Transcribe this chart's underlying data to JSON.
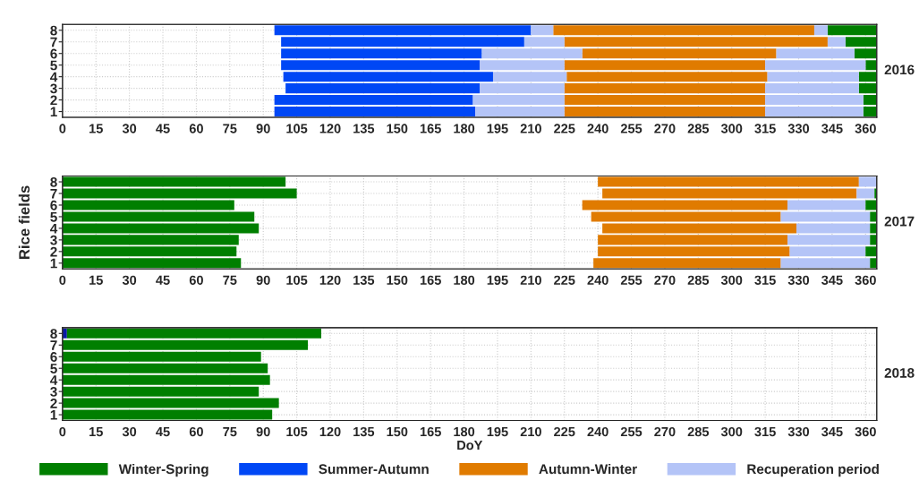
{
  "chart_data": [
    {
      "type": "bar",
      "orientation": "horizontal",
      "y2label": "2016",
      "categories": [
        "8",
        "7",
        "6",
        "5",
        "4",
        "3",
        "2",
        "1"
      ],
      "xlim": [
        0,
        365
      ],
      "xticks": [
        0,
        15,
        30,
        45,
        60,
        75,
        90,
        105,
        120,
        135,
        150,
        165,
        180,
        195,
        210,
        225,
        240,
        255,
        270,
        285,
        300,
        315,
        330,
        345,
        360
      ],
      "grid": true,
      "legend": "bottom",
      "series": [
        {
          "name": "Winter-Spring",
          "color": "#007f00",
          "base": [
            343,
            351,
            355,
            360,
            357,
            357,
            359,
            359
          ],
          "values": [
            22,
            14,
            10,
            5,
            8,
            8,
            6,
            6
          ]
        },
        {
          "name": "Summer-Autumn",
          "color": "#0047f5",
          "base": [
            95,
            98,
            98,
            98,
            99,
            100,
            95,
            95
          ],
          "values": [
            115,
            109,
            90,
            89,
            94,
            87,
            89,
            90
          ]
        },
        {
          "name": "Autumn-Winter",
          "color": "#e07b00",
          "base": [
            220,
            225,
            233,
            225,
            226,
            225,
            225,
            225
          ],
          "values": [
            117,
            118,
            87,
            90,
            90,
            90,
            90,
            90
          ]
        },
        {
          "name": "Recuperation period",
          "color": "#b4c4f7",
          "base": [
            210,
            207,
            188,
            187,
            193,
            187,
            184,
            185
          ],
          "values": [
            10,
            18,
            45,
            38,
            33,
            38,
            41,
            40
          ]
        },
        {
          "color": "#b4c4f7",
          "base": [
            337,
            343,
            320,
            315,
            316,
            315,
            315,
            315
          ],
          "values": [
            6,
            8,
            35,
            45,
            41,
            42,
            44,
            44
          ]
        }
      ]
    },
    {
      "type": "bar",
      "orientation": "horizontal",
      "y2label": "2017",
      "ylabel": "Rice fields",
      "categories": [
        "8",
        "7",
        "6",
        "5",
        "4",
        "3",
        "2",
        "1"
      ],
      "xlim": [
        0,
        365
      ],
      "xticks": [
        0,
        15,
        30,
        45,
        60,
        75,
        90,
        105,
        120,
        135,
        150,
        165,
        180,
        195,
        210,
        225,
        240,
        255,
        270,
        285,
        300,
        315,
        330,
        345,
        360
      ],
      "grid": true,
      "series": [
        {
          "color": "#007f00",
          "base": [
            0,
            0,
            0,
            0,
            0,
            0,
            0,
            0
          ],
          "values": [
            100,
            105,
            77,
            86,
            88,
            79,
            78,
            80
          ]
        },
        {
          "color": "#e07b00",
          "base": [
            240,
            242,
            233,
            237,
            242,
            240,
            240,
            238
          ],
          "values": [
            117,
            114,
            92,
            85,
            87,
            85,
            86,
            84
          ]
        },
        {
          "color": "#b4c4f7",
          "base": [
            357,
            356,
            325,
            322,
            329,
            325,
            326,
            322
          ],
          "values": [
            8,
            8,
            35,
            40,
            33,
            37,
            34,
            40
          ]
        },
        {
          "color": "#007f00",
          "base": [
            null,
            364,
            360,
            362,
            362,
            362,
            360,
            362
          ],
          "values": [
            null,
            1,
            5,
            3,
            3,
            3,
            5,
            3
          ]
        }
      ]
    },
    {
      "type": "bar",
      "orientation": "horizontal",
      "y2label": "2018",
      "xlabel": "DoY",
      "categories": [
        "8",
        "7",
        "6",
        "5",
        "4",
        "3",
        "2",
        "1"
      ],
      "xlim": [
        0,
        365
      ],
      "xticks": [
        0,
        15,
        30,
        45,
        60,
        75,
        90,
        105,
        120,
        135,
        150,
        165,
        180,
        195,
        210,
        225,
        240,
        255,
        270,
        285,
        300,
        315,
        330,
        345,
        360
      ],
      "grid": true,
      "series": [
        {
          "color": "#0a1aa8",
          "base": [
            0,
            null,
            null,
            null,
            null,
            null,
            null,
            null
          ],
          "values": [
            2,
            null,
            null,
            null,
            null,
            null,
            null,
            null
          ]
        },
        {
          "color": "#007f00",
          "base": [
            2,
            0,
            0,
            0,
            0,
            0,
            0,
            0
          ],
          "values": [
            114,
            110,
            89,
            92,
            93,
            88,
            97,
            94
          ]
        }
      ]
    }
  ]
}
